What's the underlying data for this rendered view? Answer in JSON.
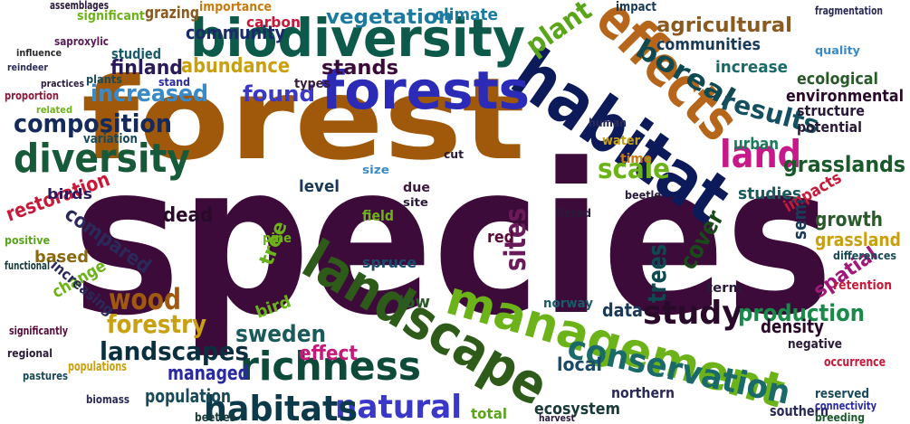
{
  "words": [
    "species",
    "forest",
    "habitat",
    "effects",
    "biodiversity",
    "forests",
    "diversity",
    "composition",
    "landscape",
    "management",
    "richness",
    "conservation",
    "natural",
    "habitats",
    "landscapes",
    "wood",
    "study",
    "sites",
    "land",
    "boreal",
    "plant",
    "agricultural",
    "results",
    "grasslands",
    "scale",
    "increased",
    "abundance",
    "community",
    "finland",
    "stands",
    "found",
    "vegetation",
    "production",
    "trees",
    "cover",
    "growth",
    "grassland",
    "density",
    "forestry",
    "sweden",
    "effect",
    "managed",
    "population",
    "restoration",
    "compared",
    "dead",
    "tree",
    "communities",
    "increase",
    "ecological",
    "environmental",
    "structure",
    "potential",
    "urban",
    "studies",
    "impacts",
    "spatial",
    "data",
    "local",
    "ecosystem",
    "northern",
    "southern",
    "total",
    "climate",
    "importance",
    "carbon",
    "grazing",
    "significant",
    "studied",
    "types",
    "variation",
    "birds",
    "based",
    "change",
    "increasing",
    "functional",
    "positive",
    "bird",
    "low",
    "red",
    "level",
    "field",
    "due",
    "spruce",
    "pine",
    "time",
    "water",
    "negative",
    "reserved",
    "connectivity",
    "breeding",
    "fragmentation",
    "impact",
    "quality",
    "retention",
    "differences",
    "occurrence",
    "norway",
    "harvest",
    "beetles",
    "biomass",
    "populations",
    "regional",
    "significantly",
    "pastures",
    "assemblages",
    "saproxylic",
    "influence",
    "reindeer",
    "practices",
    "proportion",
    "related",
    "plants",
    "stand",
    "term",
    "listed",
    "human",
    "beetle",
    "semi",
    "site",
    "size",
    "cut"
  ]
}
